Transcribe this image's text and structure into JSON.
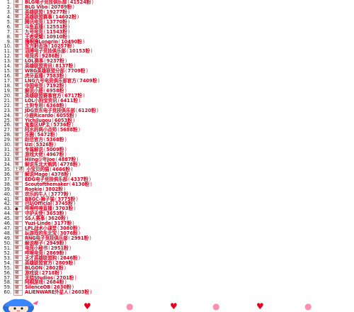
{
  "accent": "#e0001f",
  "entries": [
    {
      "rank": "1.",
      "badge": "徽",
      "name": "BLG电子竞技俱乐部",
      "value": "41524粉"
    },
    {
      "rank": "2.",
      "badge": "徽",
      "name": "BLG Vibo",
      "value": "20789粉"
    },
    {
      "rank": "3.",
      "badge": "徽",
      "name": "英雄联盟",
      "value": "19277粉"
    },
    {
      "rank": "4.",
      "badge": "徽",
      "name": "英雄联盟赛事",
      "value": "14602粉"
    },
    {
      "rank": "5.",
      "badge": "徽",
      "name": "腾讯电竞",
      "value": "13770粉"
    },
    {
      "rank": "6.",
      "badge": "徽",
      "name": "斗鱼直播",
      "value": "12551粉"
    },
    {
      "rank": "7.",
      "badge": "关",
      "name": "九号电竞",
      "value": "11543粉"
    },
    {
      "rank": "8.",
      "badge": "徽",
      "name": "王者荣耀",
      "value": "10910粉"
    },
    {
      "rank": "9.",
      "badge": "徽",
      "name": "撸啊撸Longrin",
      "value": "10490粉"
    },
    {
      "rank": "10.",
      "badge": "徽",
      "name": "东方射击场",
      "value": "10257粉"
    },
    {
      "rank": "11.",
      "badge": "徽",
      "name": "滔搏电子竞技俱乐部",
      "value": "10153粉"
    },
    {
      "rank": "12.",
      "badge": "徽",
      "name": "电竞界",
      "value": "9286粉"
    },
    {
      "rank": "13.",
      "badge": "徽",
      "name": "LOL赛事",
      "value": "9237粉"
    },
    {
      "rank": "14.",
      "badge": "徽",
      "name": "英雄联盟资讯",
      "value": "8137粉"
    },
    {
      "rank": "15.",
      "badge": "徽",
      "name": "WBG英雄联盟分部",
      "value": "7709粉"
    },
    {
      "rank": "16.",
      "badge": "徽",
      "name": "虎牙直播",
      "value": "7583粉"
    },
    {
      "rank": "17.",
      "badge": "徽",
      "name": "LNG九号电竞俱乐部官方",
      "value": "7409粉"
    },
    {
      "rank": "18.",
      "badge": "徽",
      "name": "中国电竞",
      "value": "7192粉"
    },
    {
      "rank": "19.",
      "badge": "徽",
      "name": "解说小鹿",
      "value": "6958粉"
    },
    {
      "rank": "20.",
      "badge": "徽",
      "name": "英雄联盟赛事官方",
      "value": "6717粉"
    },
    {
      "rank": "21.",
      "badge": "徽",
      "name": "LOL小狗宝资讯",
      "value": "6411粉"
    },
    {
      "rank": "22.",
      "badge": "徽",
      "name": "土狗专用",
      "value": "6368粉"
    },
    {
      "rank": "23.",
      "badge": "徽",
      "name": "JDG京东电子竞技俱乐部",
      "value": "6120粉"
    },
    {
      "rank": "24.",
      "badge": "徽",
      "name": "小鹿Ricardo",
      "value": "6055粉"
    },
    {
      "rank": "25.",
      "badge": "徽",
      "name": "Yichilugou",
      "value": "6053粉"
    },
    {
      "rank": "26.",
      "badge": "徽",
      "name": "鬼畜区UP主",
      "value": "5736粉"
    },
    {
      "rank": "27.",
      "badge": "徽",
      "name": "阿水的两小点师",
      "value": "5688粉"
    },
    {
      "rank": "28.",
      "badge": "徽",
      "name": "乐圈",
      "value": "5472粉"
    },
    {
      "rank": "29.",
      "badge": "徽",
      "name": "赵信官方",
      "value": "5368粉"
    },
    {
      "rank": "30.",
      "badge": "徽",
      "name": "Uzi",
      "value": "5326粉"
    },
    {
      "rank": "31.",
      "badge": "徽",
      "name": "专属解说",
      "value": "5009粉"
    },
    {
      "rank": "32.",
      "badge": "徽",
      "name": "游戏大佬",
      "value": "4967粉"
    },
    {
      "rank": "33.",
      "badge": "徽",
      "name": "Hiing少年Joe",
      "value": "4887粉"
    },
    {
      "rank": "34.",
      "badge": "徽",
      "name": "解说东北大鹌鹑",
      "value": "4778粉"
    },
    {
      "rank": "35.",
      "badge": "土通",
      "name": "小宝贝的猫",
      "value": "4666粉"
    },
    {
      "rank": "36.",
      "badge": "徽",
      "name": "解说Mage",
      "value": "4378粉"
    },
    {
      "rank": "37.",
      "badge": "徽",
      "name": "EDG电子竞技俱乐部",
      "value": "4337粉"
    },
    {
      "rank": "38.",
      "badge": "徽",
      "name": "Scoutofthemaker",
      "value": "4130粉"
    },
    {
      "rank": "39.",
      "badge": "徽",
      "name": "Rookie",
      "value": "3802粉"
    },
    {
      "rank": "40.",
      "badge": "徽",
      "name": "欢乐的牛人",
      "value": "3777粉"
    },
    {
      "rank": "41.",
      "badge": "徽",
      "name": "BBGC-狮子猫",
      "value": "3775粉"
    },
    {
      "rank": "42.",
      "badge": "徽",
      "name": "巴站Official",
      "value": "3745粉"
    },
    {
      "rank": "43.",
      "badge": "●",
      "name": "哔哩哔哩直播",
      "value": "3703粉"
    },
    {
      "rank": "44.",
      "badge": "徽",
      "name": "守护天使",
      "value": "3653粉"
    },
    {
      "rank": "45.",
      "badge": "徽",
      "name": "SS人赛事",
      "value": "3620粉"
    },
    {
      "rank": "46.",
      "badge": "徽",
      "name": "Yuzi-Linde",
      "value": "3177粉"
    },
    {
      "rank": "47.",
      "badge": "徽",
      "name": "LPL战术小课堂",
      "value": "3080粉"
    },
    {
      "rank": "48.",
      "badge": "徽",
      "name": "玩游戏的东北宝",
      "value": "3076粉"
    },
    {
      "rank": "49.",
      "badge": "徽",
      "name": "RNG电子竞技俱乐部",
      "value": "2991粉"
    },
    {
      "rank": "50.",
      "badge": "徽",
      "name": "解说橙子",
      "value": "2949粉"
    },
    {
      "rank": "51.",
      "badge": "徽",
      "name": "电竞小秘书",
      "value": "2951粉"
    },
    {
      "rank": "52.",
      "badge": "徽",
      "name": "哔哩电竞",
      "value": "2869粉"
    },
    {
      "rank": "53.",
      "badge": "徽",
      "name": "天才英雄联盟狗",
      "value": "2846粉"
    },
    {
      "rank": "54.",
      "badge": "徽",
      "name": "英雄联盟官方",
      "value": "2809粉"
    },
    {
      "rank": "55.",
      "badge": "徽",
      "name": "BLGON",
      "value": "2802粉"
    },
    {
      "rank": "56.",
      "badge": "徽",
      "name": "游戏说",
      "value": "2718粉"
    },
    {
      "rank": "57.",
      "badge": "徽",
      "name": "关晓Studios",
      "value": "2701粉"
    },
    {
      "rank": "58.",
      "badge": "徽",
      "name": "阿桐游戏",
      "value": "2684粉"
    },
    {
      "rank": "59.",
      "badge": "徽",
      "name": "SilenceOB",
      "value": "2630粉"
    },
    {
      "rank": "60.",
      "badge": "徽",
      "name": "ALIENWARE外星人",
      "value": "2603粉"
    }
  ],
  "stickers": {
    "character_icon": "anime-girl-sticker-icon",
    "decorations": [
      "heart-sticker-icon",
      "blob-sticker-icon",
      "heart-sticker-icon",
      "blob-sticker-icon",
      "heart-sticker-icon",
      "blob-sticker-icon"
    ]
  }
}
